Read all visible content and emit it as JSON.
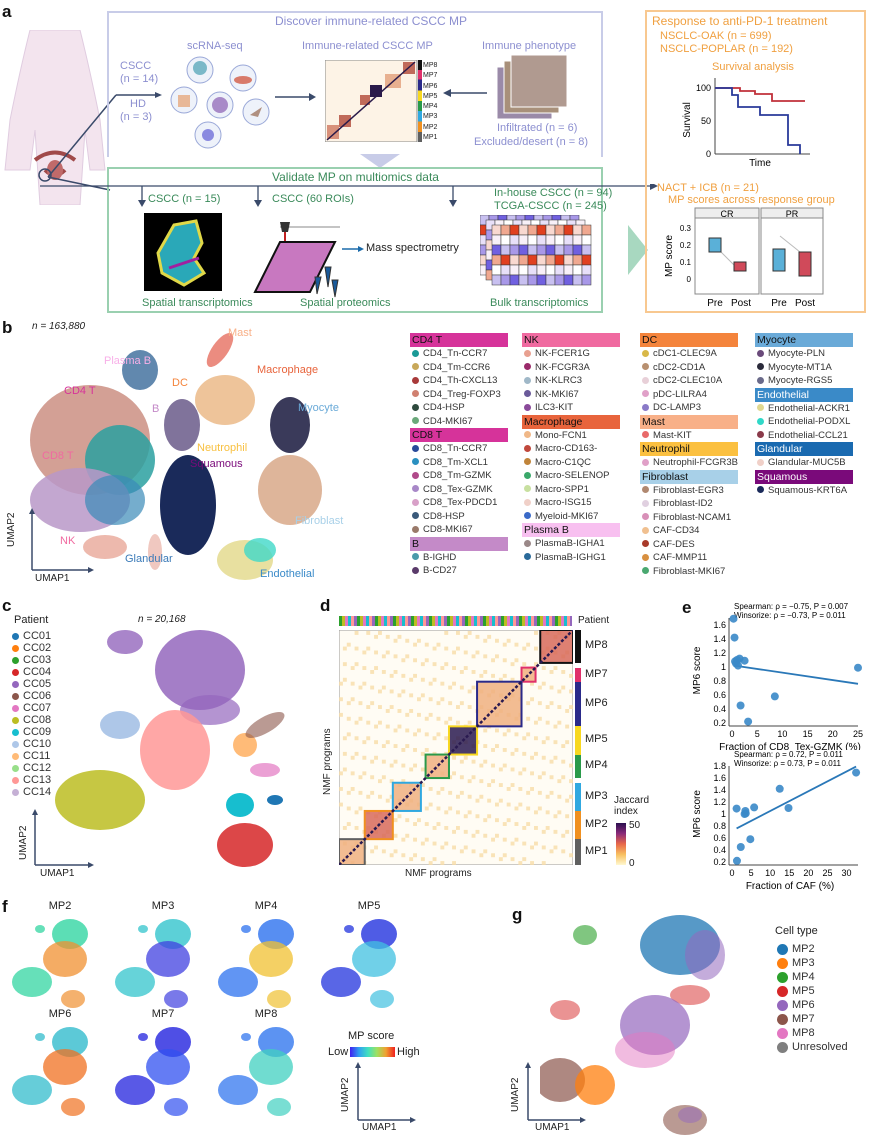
{
  "panel_labels": {
    "a": "a",
    "b": "b",
    "c": "c",
    "d": "d",
    "e": "e",
    "f": "f",
    "g": "g"
  },
  "a": {
    "discover_title": "Discover immune-related CSCC MP",
    "scrnaseq": "scRNA-seq",
    "cscc": "CSCC",
    "cscc_n": "(n = 14)",
    "hd": "HD",
    "hd_n": "(n = 3)",
    "mp_heatmap_title": "Immune-related CSCC MP",
    "mp_labels": [
      "MP8",
      "MP7",
      "MP6",
      "MP5",
      "MP4",
      "MP3",
      "MP2",
      "MP1"
    ],
    "immune_phenotype": "Immune phenotype",
    "infiltrated": "Infiltrated (n = 6)",
    "excluded": "Excluded/desert (n = 8)",
    "validate_title": "Validate MP on multiomics data",
    "st_cohort": "CSCC (n = 15)",
    "sp_cohort": "CSCC (60 ROIs)",
    "mass_spec": "Mass spectrometry",
    "inhouse": "In-house CSCC (n = 94)",
    "tcga": "TCGA-CSCC (n = 245)",
    "spatial_transcriptomics": "Spatial transcriptomics",
    "spatial_proteomics": "Spatial proteomics",
    "bulk_transcriptomics": "Bulk transcriptomics",
    "response_title": "Response to anti-PD-1 treatment",
    "oak": "NSCLC-OAK (n = 699)",
    "poplar": "NSCLC-POPLAR (n = 192)",
    "survival_analysis": "Survival analysis",
    "survival_ylabel": "Survival",
    "survival_xlabel": "Time",
    "survival_ticks": [
      "100",
      "50",
      "0"
    ],
    "nact": "NACT + ICB (n = 21)",
    "mp_scores_title": "MP scores across response group",
    "facets": [
      "CR",
      "PR"
    ],
    "box_ylabel": "MP score",
    "box_ticks": [
      "0.3",
      "0.2",
      "0.1",
      "0"
    ],
    "box_xticks": [
      "Pre",
      "Post",
      "Pre",
      "Post"
    ]
  },
  "b": {
    "n": "n = 163,880",
    "umap1": "UMAP1",
    "umap2": "UMAP2",
    "cluster_labels": [
      "Mast",
      "Plasma B",
      "Macrophage",
      "DC",
      "CD4 T",
      "B",
      "Myocyte",
      "Neutrophil",
      "CD8 T",
      "Squamous",
      "Fibroblast",
      "NK",
      "Glandular",
      "Endothelial"
    ],
    "legend": [
      {
        "group": "CD4 T",
        "color": "#d6339a",
        "items": [
          [
            "CD4_Tn-CCR7",
            "#1a9a96"
          ],
          [
            "CD4_Tm-CCR6",
            "#c8a85a"
          ],
          [
            "CD4_Th-CXCL13",
            "#a83a3a"
          ],
          [
            "CD4_Treg-FOXP3",
            "#d08070"
          ],
          [
            "CD4-HSP",
            "#2e4a3e"
          ],
          [
            "CD4-MKI67",
            "#6aa87a"
          ]
        ]
      },
      {
        "group": "CD8 T",
        "color": "#d6339a",
        "items": [
          [
            "CD8_Tn-CCR7",
            "#2a4a9a"
          ],
          [
            "CD8_Tm-XCL1",
            "#2a90c0"
          ],
          [
            "CD8_Tm-GZMK",
            "#b04a8a"
          ],
          [
            "CD8_Tex-GZMK",
            "#a888c8"
          ],
          [
            "CD8_Tex-PDCD1",
            "#d8a0c8"
          ],
          [
            "CD8-HSP",
            "#3a5a7a"
          ],
          [
            "CD8-MKI67",
            "#9a7a6a"
          ]
        ]
      },
      {
        "group": "B",
        "color": "#c48ac8",
        "items": [
          [
            "B-IGHD",
            "#4a9aaa"
          ],
          [
            "B-CD27",
            "#5a3a6a"
          ]
        ]
      },
      {
        "group": "NK",
        "color": "#f06aa0",
        "items": [
          [
            "NK-FCER1G",
            "#e8a090"
          ],
          [
            "NK-FCGR3A",
            "#9a2a6a"
          ],
          [
            "NK-KLRC3",
            "#a0b8c8"
          ],
          [
            "NK-MKI67",
            "#6a5a9a"
          ],
          [
            "ILC3-KIT",
            "#8a4a9a"
          ]
        ]
      },
      {
        "group": "Macrophage",
        "color": "#e8643c",
        "items": [
          [
            "Mono-FCN1",
            "#f0b888"
          ],
          [
            "Macro-CD163-",
            "#c0483c"
          ],
          [
            "Macro-C1QC",
            "#c0843a"
          ],
          [
            "Macro-SELENOP",
            "#3aa86a"
          ],
          [
            "Macro-SPP1",
            "#c8e0a0"
          ],
          [
            "Macro-ISG15",
            "#f0d0c8"
          ],
          [
            "Myeloid-MKI67",
            "#3a6ac8"
          ]
        ]
      },
      {
        "group": "Plasma B",
        "color": "#f8c0f0",
        "items": [
          [
            "PlasmaB-IGHA1",
            "#9a8888"
          ],
          [
            "PlasmaB-IGHG1",
            "#2a6a9a"
          ]
        ]
      },
      {
        "group": "DC",
        "color": "#f4843c",
        "items": [
          [
            "cDC1-CLEC9A",
            "#d8b848"
          ],
          [
            "cDC2-CD1A",
            "#b89070"
          ],
          [
            "cDC2-CLEC10A",
            "#e8d0d8"
          ],
          [
            "pDC-LILRA4",
            "#e0a0c8"
          ],
          [
            "DC-LAMP3",
            "#8a7ac8"
          ]
        ]
      },
      {
        "group": "Mast",
        "color": "#f8b088",
        "items": [
          [
            "Mast-KIT",
            "#e86a6a"
          ]
        ]
      },
      {
        "group": "Neutrophil",
        "color": "#fbc040",
        "items": [
          [
            "Neutrophil-FCGR3B",
            "#e0a0c8"
          ]
        ]
      },
      {
        "group": "Fibroblast",
        "color": "#a8d0e8",
        "items": [
          [
            "Fibroblast-EGR3",
            "#b08870"
          ],
          [
            "Fibroblast-ID2",
            "#e0d0e0"
          ],
          [
            "Fibroblast-NCAM1",
            "#d890b8"
          ],
          [
            "CAF-CD34",
            "#f0c090"
          ],
          [
            "CAF-DES",
            "#a83a2a"
          ],
          [
            "CAF-MMP11",
            "#d89040"
          ],
          [
            "Fibroblast-MKI67",
            "#4aa870"
          ]
        ]
      },
      {
        "group": "Myocyte",
        "color": "#6aaad8",
        "items": [
          [
            "Myocyte-PLN",
            "#6a4a7a"
          ],
          [
            "Myocyte-MT1A",
            "#2a2a3a"
          ],
          [
            "Myocyte-RGS5",
            "#6a6a8a"
          ]
        ]
      },
      {
        "group": "Endothelial",
        "color": "#3a8ac8",
        "items": [
          [
            "Endothelial-ACKR1",
            "#e0d890"
          ],
          [
            "Endothelial-PODXL",
            "#30d8c8"
          ],
          [
            "Endothelial-CCL21",
            "#8a3a4a"
          ]
        ]
      },
      {
        "group": "Glandular",
        "color": "#1a6ab0",
        "items": [
          [
            "Glandular-MUC5B",
            "#f0d0c8"
          ]
        ]
      },
      {
        "group": "Squamous",
        "color": "#7a0a7a",
        "items": [
          [
            "Squamous-KRT6A",
            "#1a2a5a"
          ]
        ]
      }
    ]
  },
  "c": {
    "legend_title": "Patient",
    "n": "n = 20,168",
    "umap1": "UMAP1",
    "umap2": "UMAP2",
    "patients": [
      [
        "CC01",
        "#1f77b4"
      ],
      [
        "CC02",
        "#ff7f0e"
      ],
      [
        "CC03",
        "#2ca02c"
      ],
      [
        "CC04",
        "#d62728"
      ],
      [
        "CC05",
        "#9467bd"
      ],
      [
        "CC06",
        "#8c564b"
      ],
      [
        "CC07",
        "#e377c2"
      ],
      [
        "CC08",
        "#bcbd22"
      ],
      [
        "CC09",
        "#17becf"
      ],
      [
        "CC10",
        "#aec7e8"
      ],
      [
        "CC11",
        "#ffbb78"
      ],
      [
        "CC12",
        "#98df8a"
      ],
      [
        "CC13",
        "#ff9896"
      ],
      [
        "CC14",
        "#c5b0d5"
      ]
    ]
  },
  "d": {
    "patient_label": "Patient",
    "xlabel": "NMF programs",
    "ylabel": "NMF programs",
    "colorbar_title": "Jaccard index",
    "colorbar_max": "50",
    "colorbar_min": "0",
    "mps": [
      {
        "name": "MP8",
        "color": "#111111",
        "frac": [
          0.86,
          1.0
        ]
      },
      {
        "name": "MP7",
        "color": "#e0306a",
        "frac": [
          0.78,
          0.84
        ]
      },
      {
        "name": "MP6",
        "color": "#2a2a8a",
        "frac": [
          0.59,
          0.78
        ]
      },
      {
        "name": "MP5",
        "color": "#f8d820",
        "frac": [
          0.47,
          0.59
        ]
      },
      {
        "name": "MP4",
        "color": "#2a9a4a",
        "frac": [
          0.37,
          0.47
        ]
      },
      {
        "name": "MP3",
        "color": "#30a8e0",
        "frac": [
          0.23,
          0.35
        ]
      },
      {
        "name": "MP2",
        "color": "#f09020",
        "frac": [
          0.11,
          0.23
        ]
      },
      {
        "name": "MP1",
        "color": "#606060",
        "frac": [
          0.0,
          0.11
        ]
      }
    ]
  },
  "chart_data": [
    {
      "type": "scatter",
      "panel": "e-top",
      "annotation1": "Spearman: ρ = −0.75, P = 0.007",
      "annotation2": "Winsorize: ρ = −0.73, P = 0.011",
      "xlabel": "Fraction of CD8_Tex-GZMK (%)",
      "ylabel": "MP6 score",
      "xlim": [
        0,
        25
      ],
      "ylim": [
        0.2,
        1.7
      ],
      "xticks": [
        0,
        5,
        10,
        15,
        20,
        25
      ],
      "yticks": [
        0.2,
        0.4,
        0.6,
        0.8,
        1.0,
        1.2,
        1.4,
        1.6
      ],
      "points": [
        [
          0.3,
          1.69
        ],
        [
          0.5,
          1.42
        ],
        [
          0.6,
          1.08
        ],
        [
          0.8,
          1.05
        ],
        [
          1.0,
          1.1
        ],
        [
          1.2,
          1.02
        ],
        [
          1.5,
          1.12
        ],
        [
          2.5,
          1.09
        ],
        [
          25,
          0.99
        ],
        [
          8.5,
          0.58
        ],
        [
          1.7,
          0.45
        ],
        [
          3.2,
          0.22
        ]
      ],
      "fit": [
        [
          0.5,
          1.02
        ],
        [
          25,
          0.76
        ]
      ],
      "color": "#3a88c8"
    },
    {
      "type": "scatter",
      "panel": "e-bottom",
      "annotation1": "Spearman: ρ = 0.72, P = 0.011",
      "annotation2": "Winsorize: ρ = 0.73, P = 0.011",
      "xlabel": "Fraction of CAF (%)",
      "ylabel": "MP6 score",
      "xlim": [
        0,
        33
      ],
      "ylim": [
        0.2,
        1.8
      ],
      "xticks": [
        0,
        5,
        10,
        15,
        20,
        25,
        30
      ],
      "yticks": [
        0.2,
        0.4,
        0.6,
        0.8,
        1.0,
        1.2,
        1.4,
        1.6,
        1.8
      ],
      "points": [
        [
          1.2,
          1.09
        ],
        [
          3.3,
          1.0
        ],
        [
          3.5,
          1.05
        ],
        [
          3.6,
          1.01
        ],
        [
          5.8,
          1.11
        ],
        [
          12.5,
          1.42
        ],
        [
          14.8,
          1.1
        ],
        [
          32.5,
          1.69
        ],
        [
          4.8,
          0.58
        ],
        [
          2.3,
          0.45
        ],
        [
          1.3,
          0.22
        ]
      ],
      "fit": [
        [
          1.2,
          0.76
        ],
        [
          32.5,
          1.79
        ]
      ],
      "color": "#3a88c8"
    }
  ],
  "f": {
    "titles": [
      "MP2",
      "MP3",
      "MP4",
      "MP5",
      "MP6",
      "MP7",
      "MP8"
    ],
    "legend_title": "MP score",
    "low": "Low",
    "high": "High",
    "umap1": "UMAP1",
    "umap2": "UMAP2"
  },
  "g": {
    "legend_title": "Cell type",
    "items": [
      [
        "MP2",
        "#1f77b4"
      ],
      [
        "MP3",
        "#ff7f0e"
      ],
      [
        "MP4",
        "#2ca02c"
      ],
      [
        "MP5",
        "#d62728"
      ],
      [
        "MP6",
        "#9467bd"
      ],
      [
        "MP7",
        "#8c564b"
      ],
      [
        "MP8",
        "#e377c2"
      ],
      [
        "Unresolved",
        "#7f7f7f"
      ]
    ],
    "umap1": "UMAP1",
    "umap2": "UMAP2"
  }
}
